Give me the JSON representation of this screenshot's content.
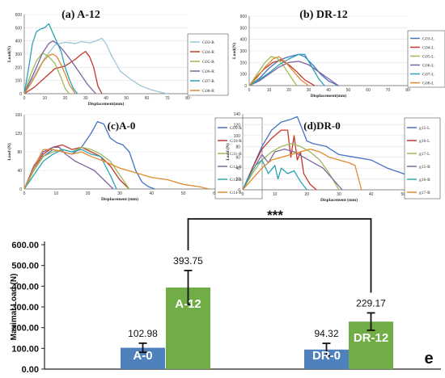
{
  "figure": {
    "significance": "***",
    "panel_letter": "e"
  },
  "chart_data": [
    {
      "id": "a",
      "type": "line",
      "title": "(a) A-12",
      "xlabel": "Displacement(mm)",
      "ylabel": "Load(N)",
      "xlim": [
        0,
        80
      ],
      "ylim": [
        0,
        600
      ],
      "xticks": [
        0,
        10,
        20,
        30,
        40,
        50,
        60,
        70,
        80
      ],
      "yticks": [
        0,
        100,
        200,
        300,
        400,
        500,
        600
      ],
      "legend_position": "right",
      "series": [
        {
          "name": "G03-R",
          "color": "#9ec6d6",
          "x": [
            0,
            5,
            10,
            15,
            20,
            25,
            28,
            32,
            35,
            38,
            40,
            43,
            47,
            52,
            57,
            62,
            67,
            70
          ],
          "y": [
            0,
            140,
            270,
            370,
            390,
            380,
            395,
            385,
            400,
            420,
            380,
            280,
            170,
            110,
            60,
            30,
            10,
            0
          ]
        },
        {
          "name": "G04-R",
          "color": "#c0392b",
          "x": [
            0,
            5,
            10,
            15,
            20,
            25,
            28,
            30,
            32,
            34,
            36,
            38
          ],
          "y": [
            0,
            50,
            120,
            190,
            210,
            260,
            300,
            320,
            280,
            200,
            60,
            0
          ]
        },
        {
          "name": "G05-R",
          "color": "#9bbb59",
          "x": [
            0,
            3,
            6,
            9,
            12,
            15,
            18,
            20,
            22
          ],
          "y": [
            0,
            140,
            250,
            310,
            280,
            230,
            120,
            40,
            0
          ]
        },
        {
          "name": "G06-R",
          "color": "#8064a2",
          "x": [
            0,
            3,
            6,
            9,
            12,
            14,
            16,
            19,
            23,
            27,
            31,
            35
          ],
          "y": [
            0,
            100,
            200,
            310,
            380,
            400,
            380,
            330,
            250,
            160,
            70,
            0
          ]
        },
        {
          "name": "G07-R",
          "color": "#2aa3b5",
          "x": [
            0,
            2,
            4,
            6,
            8,
            10,
            12,
            14,
            16,
            18,
            20,
            22,
            24,
            26
          ],
          "y": [
            0,
            180,
            380,
            470,
            490,
            500,
            530,
            460,
            390,
            320,
            200,
            110,
            40,
            0
          ]
        },
        {
          "name": "G08-R",
          "color": "#e08a2e",
          "x": [
            0,
            3,
            6,
            9,
            12,
            14,
            16,
            18,
            20,
            22,
            25
          ],
          "y": [
            0,
            70,
            150,
            240,
            290,
            300,
            280,
            220,
            150,
            70,
            0
          ]
        }
      ]
    },
    {
      "id": "b",
      "type": "line",
      "title": "(b) DR-12",
      "xlabel": "Displacement(mm)",
      "ylabel": "Load(N)",
      "xlim": [
        0,
        80
      ],
      "ylim": [
        0,
        600
      ],
      "xticks": [
        0,
        10,
        20,
        30,
        40,
        50,
        60,
        70,
        80
      ],
      "yticks": [
        0,
        100,
        200,
        300,
        400,
        500,
        600
      ],
      "legend_position": "right",
      "series": [
        {
          "name": "G03-L",
          "color": "#4472c4",
          "x": [
            0,
            5,
            10,
            15,
            20,
            25,
            28,
            32,
            36,
            40,
            45
          ],
          "y": [
            0,
            60,
            150,
            220,
            250,
            270,
            250,
            180,
            100,
            40,
            0
          ]
        },
        {
          "name": "G04-L",
          "color": "#c0392b",
          "x": [
            0,
            4,
            8,
            12,
            16,
            20,
            24,
            28,
            33
          ],
          "y": [
            0,
            80,
            150,
            200,
            220,
            180,
            120,
            50,
            0
          ]
        },
        {
          "name": "G05-L",
          "color": "#9bbb59",
          "x": [
            0,
            4,
            8,
            11,
            14,
            17,
            20,
            24
          ],
          "y": [
            0,
            100,
            200,
            250,
            240,
            180,
            100,
            0
          ]
        },
        {
          "name": "G06-L",
          "color": "#8064a2",
          "x": [
            0,
            5,
            10,
            15,
            20,
            25,
            30,
            35,
            40,
            45
          ],
          "y": [
            0,
            40,
            100,
            160,
            200,
            210,
            180,
            120,
            60,
            0
          ]
        },
        {
          "name": "G07-L",
          "color": "#2aa3b5",
          "x": [
            0,
            5,
            10,
            15,
            20,
            25,
            28,
            30,
            32,
            35,
            38
          ],
          "y": [
            0,
            50,
            110,
            180,
            230,
            270,
            270,
            210,
            150,
            60,
            0
          ]
        },
        {
          "name": "G08-L",
          "color": "#e08a2e",
          "x": [
            0,
            4,
            8,
            12,
            15,
            18,
            22,
            26,
            30
          ],
          "y": [
            0,
            70,
            160,
            230,
            250,
            210,
            130,
            50,
            0
          ]
        }
      ]
    },
    {
      "id": "c",
      "type": "line",
      "title": "(c)A-0",
      "xlabel": "Displacement (mm)",
      "ylabel": "Load (N)",
      "xlim": [
        0,
        60
      ],
      "ylim": [
        0,
        160
      ],
      "xticks": [
        0,
        10,
        20,
        30,
        40,
        50,
        60
      ],
      "yticks": [
        0,
        40,
        80,
        120,
        160
      ],
      "legend_position": "right",
      "series": [
        {
          "name": "G09-R",
          "color": "#4472c4",
          "x": [
            0,
            3,
            6,
            9,
            12,
            15,
            18,
            21,
            23,
            25,
            27,
            29,
            31,
            33,
            35,
            37,
            39,
            41
          ],
          "y": [
            0,
            40,
            70,
            85,
            80,
            75,
            90,
            120,
            145,
            140,
            110,
            100,
            95,
            80,
            40,
            15,
            5,
            0
          ]
        },
        {
          "name": "G10-R",
          "color": "#c0392b",
          "x": [
            0,
            3,
            6,
            9,
            12,
            15,
            18,
            21,
            24,
            27,
            30,
            33
          ],
          "y": [
            0,
            45,
            75,
            90,
            95,
            85,
            90,
            80,
            70,
            50,
            20,
            0
          ]
        },
        {
          "name": "G11-R",
          "color": "#9bbb59",
          "x": [
            0,
            3,
            6,
            9,
            12,
            15,
            18,
            21,
            24,
            27,
            30,
            33
          ],
          "y": [
            0,
            40,
            70,
            80,
            85,
            80,
            90,
            85,
            75,
            60,
            30,
            0
          ]
        },
        {
          "name": "G12-R",
          "color": "#8064a2",
          "x": [
            0,
            3,
            6,
            9,
            11,
            13,
            16,
            19,
            22,
            25,
            28
          ],
          "y": [
            0,
            50,
            80,
            90,
            90,
            75,
            60,
            50,
            40,
            20,
            0
          ]
        },
        {
          "name": "G13-R",
          "color": "#2aa3b5",
          "x": [
            0,
            3,
            6,
            9,
            12,
            15,
            18,
            21,
            24,
            27,
            29
          ],
          "y": [
            0,
            30,
            60,
            75,
            85,
            80,
            85,
            75,
            70,
            30,
            0
          ]
        },
        {
          "name": "G14-R",
          "color": "#e08a2e",
          "x": [
            0,
            2,
            4,
            6,
            9,
            12,
            15,
            18,
            21,
            25,
            30,
            35,
            40,
            45,
            50,
            55,
            58
          ],
          "y": [
            0,
            30,
            60,
            85,
            85,
            80,
            75,
            80,
            70,
            60,
            45,
            35,
            25,
            20,
            10,
            5,
            0
          ]
        }
      ]
    },
    {
      "id": "d",
      "type": "line",
      "title": "(d)DR-0",
      "xlabel": "Displacement (mm)",
      "ylabel": "Load (N)",
      "xlim": [
        0,
        60
      ],
      "ylim": [
        0,
        140
      ],
      "xticks": [
        0,
        10,
        20,
        30,
        40,
        50,
        60
      ],
      "yticks": [
        0,
        20,
        40,
        60,
        80,
        100,
        120,
        140
      ],
      "legend_position": "right",
      "series": [
        {
          "name": "g15-L",
          "color": "#4472c4",
          "x": [
            0,
            3,
            6,
            9,
            12,
            15,
            17,
            18,
            20,
            22,
            26,
            30,
            35,
            40,
            45,
            50,
            55,
            58,
            60
          ],
          "y": [
            0,
            40,
            80,
            110,
            125,
            130,
            135,
            120,
            90,
            85,
            80,
            65,
            60,
            55,
            40,
            30,
            15,
            5,
            0
          ]
        },
        {
          "name": "g16-L",
          "color": "#c0392b",
          "x": [
            0,
            3,
            6,
            9,
            12,
            14,
            15,
            16,
            17,
            18,
            19,
            21,
            23
          ],
          "y": [
            0,
            40,
            75,
            95,
            110,
            110,
            60,
            100,
            55,
            70,
            30,
            10,
            0
          ]
        },
        {
          "name": "g17-L",
          "color": "#9bbb59",
          "x": [
            0,
            3,
            6,
            9,
            12,
            15,
            18,
            21,
            24,
            27,
            30
          ],
          "y": [
            0,
            30,
            55,
            70,
            80,
            85,
            80,
            70,
            55,
            30,
            0
          ]
        },
        {
          "name": "g15-R",
          "color": "#8064a2",
          "x": [
            0,
            3,
            6,
            8,
            10,
            13,
            16,
            19,
            22,
            25,
            28,
            31
          ],
          "y": [
            0,
            35,
            65,
            50,
            70,
            75,
            70,
            60,
            50,
            40,
            20,
            0
          ]
        },
        {
          "name": "g16-R",
          "color": "#2aa3b5",
          "x": [
            0,
            2,
            4,
            6,
            8,
            10,
            11,
            12,
            14,
            16,
            18,
            20
          ],
          "y": [
            0,
            25,
            45,
            55,
            30,
            45,
            20,
            40,
            30,
            35,
            15,
            0
          ]
        },
        {
          "name": "g17-R",
          "color": "#e08a2e",
          "x": [
            0,
            3,
            6,
            9,
            12,
            15,
            18,
            21,
            24,
            27,
            30,
            33,
            35,
            37
          ],
          "y": [
            0,
            20,
            40,
            55,
            60,
            65,
            70,
            75,
            70,
            60,
            55,
            50,
            45,
            0
          ]
        }
      ]
    },
    {
      "id": "e",
      "type": "bar",
      "ylabel": "Maximal Load (N)",
      "ylim": [
        0,
        600
      ],
      "yticks": [
        "0.00",
        "100.00",
        "200.00",
        "300.00",
        "400.00",
        "500.00",
        "600.00"
      ],
      "grid": false,
      "groups": [
        {
          "bars": [
            {
              "label": "A-0",
              "value": 102.98,
              "value_text": "102.98",
              "error": 22,
              "color": "#4f81bd"
            },
            {
              "label": "A-12",
              "value": 393.75,
              "value_text": "393.75",
              "error": 82,
              "color": "#70ad47"
            }
          ]
        },
        {
          "bars": [
            {
              "label": "DR-0",
              "value": 94.32,
              "value_text": "94.32",
              "error": 30,
              "color": "#4f81bd"
            },
            {
              "label": "DR-12",
              "value": 229.17,
              "value_text": "229.17",
              "error": 42,
              "color": "#70ad47"
            }
          ]
        }
      ]
    }
  ]
}
